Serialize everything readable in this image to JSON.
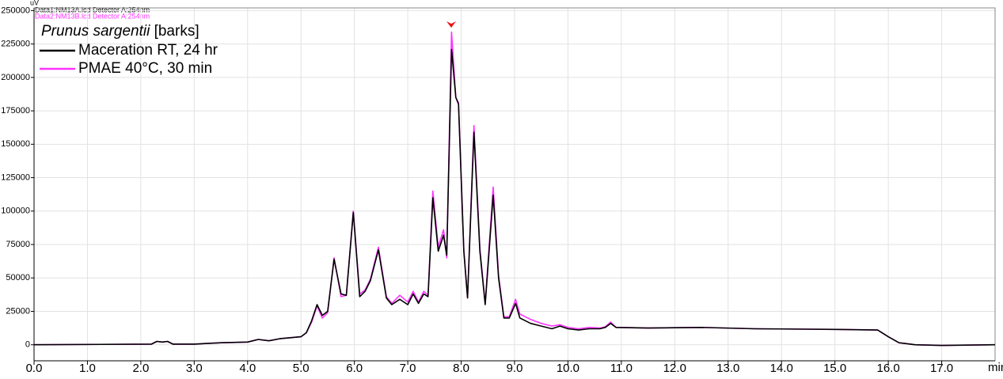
{
  "chart_data": {
    "type": "line",
    "title": "Prunus sargentii",
    "subtitle": "[barks]",
    "annotations": [
      "Data1:NM13A.lcd Detector A:254nm",
      "Data2:NM13B.lcd Detector A:254nm"
    ],
    "y_label": "uV",
    "x_label": "min",
    "x": [
      0.0,
      2.2,
      2.3,
      2.4,
      2.5,
      2.6,
      3.0,
      3.5,
      4.0,
      4.2,
      4.4,
      4.6,
      5.0,
      5.1,
      5.2,
      5.3,
      5.4,
      5.5,
      5.62,
      5.75,
      5.85,
      5.98,
      6.1,
      6.2,
      6.3,
      6.45,
      6.6,
      6.7,
      6.85,
      7.0,
      7.1,
      7.2,
      7.3,
      7.38,
      7.47,
      7.57,
      7.67,
      7.73,
      7.82,
      7.9,
      7.95,
      8.05,
      8.12,
      8.24,
      8.35,
      8.45,
      8.6,
      8.7,
      8.8,
      8.9,
      9.02,
      9.1,
      9.2,
      9.3,
      9.5,
      9.7,
      9.85,
      10.0,
      10.2,
      10.4,
      10.6,
      10.7,
      10.8,
      10.9,
      11.5,
      12.5,
      13.5,
      15.0,
      15.8,
      16.0,
      16.2,
      16.5,
      17.0,
      18.0
    ],
    "series": [
      {
        "name": "PMAE 40°C, 30 min",
        "color": "#ff33ff",
        "values": [
          0,
          500,
          2500,
          2000,
          2500,
          500,
          500,
          1500,
          2000,
          4000,
          3000,
          4500,
          6000,
          9000,
          17000,
          29000,
          20000,
          24000,
          65000,
          36000,
          37000,
          100000,
          38000,
          41000,
          49000,
          73000,
          36000,
          31000,
          37000,
          32000,
          40000,
          32000,
          40000,
          37000,
          115000,
          73000,
          86000,
          65000,
          234000,
          185000,
          181000,
          71000,
          35000,
          164000,
          72000,
          31000,
          118000,
          52000,
          21000,
          21000,
          34000,
          23000,
          21000,
          19000,
          16000,
          14000,
          15000,
          13000,
          12000,
          13000,
          12500,
          13500,
          17000,
          13000,
          12500,
          13000,
          12000,
          11500,
          11000,
          6000,
          1500,
          0,
          -500,
          0
        ]
      },
      {
        "name": "Maceration RT, 24 hr",
        "color": "#000000",
        "values": [
          0,
          500,
          2500,
          2000,
          2500,
          500,
          500,
          1500,
          2000,
          4000,
          3000,
          4500,
          6000,
          9000,
          18000,
          30000,
          22000,
          25000,
          64000,
          38000,
          37000,
          99000,
          36000,
          40000,
          48000,
          71000,
          35000,
          30000,
          34000,
          30000,
          38000,
          31000,
          38000,
          36000,
          110000,
          70000,
          82000,
          67000,
          221000,
          185000,
          180000,
          70000,
          35000,
          159000,
          70000,
          30000,
          112000,
          50000,
          20000,
          20000,
          31000,
          20000,
          18000,
          16000,
          14000,
          12000,
          14000,
          12000,
          11000,
          12000,
          12000,
          13000,
          16000,
          13000,
          12500,
          13000,
          12000,
          11500,
          11000,
          6000,
          1500,
          0,
          -500,
          0
        ]
      }
    ],
    "xlim": [
      0,
      18
    ],
    "ylim": [
      -12000,
      252000
    ],
    "xticks": [
      {
        "value": 0,
        "label": "0.0"
      },
      {
        "value": 1,
        "label": "1.0"
      },
      {
        "value": 2,
        "label": "2.0"
      },
      {
        "value": 3,
        "label": "3.0"
      },
      {
        "value": 4,
        "label": "4.0"
      },
      {
        "value": 5,
        "label": "5.0"
      },
      {
        "value": 6,
        "label": "6.0"
      },
      {
        "value": 7,
        "label": "7.0"
      },
      {
        "value": 8,
        "label": "8.0"
      },
      {
        "value": 9,
        "label": "9.0"
      },
      {
        "value": 10,
        "label": "10.0"
      },
      {
        "value": 11,
        "label": "11.0"
      },
      {
        "value": 12,
        "label": "12.0"
      },
      {
        "value": 13,
        "label": "13.0"
      },
      {
        "value": 14,
        "label": "14.0"
      },
      {
        "value": 15,
        "label": "15.0"
      },
      {
        "value": 16,
        "label": "16.0"
      },
      {
        "value": 17,
        "label": "17.0"
      }
    ],
    "yticks": [
      0,
      25000,
      50000,
      75000,
      100000,
      125000,
      150000,
      175000,
      200000,
      225000,
      250000
    ],
    "grid": true
  }
}
